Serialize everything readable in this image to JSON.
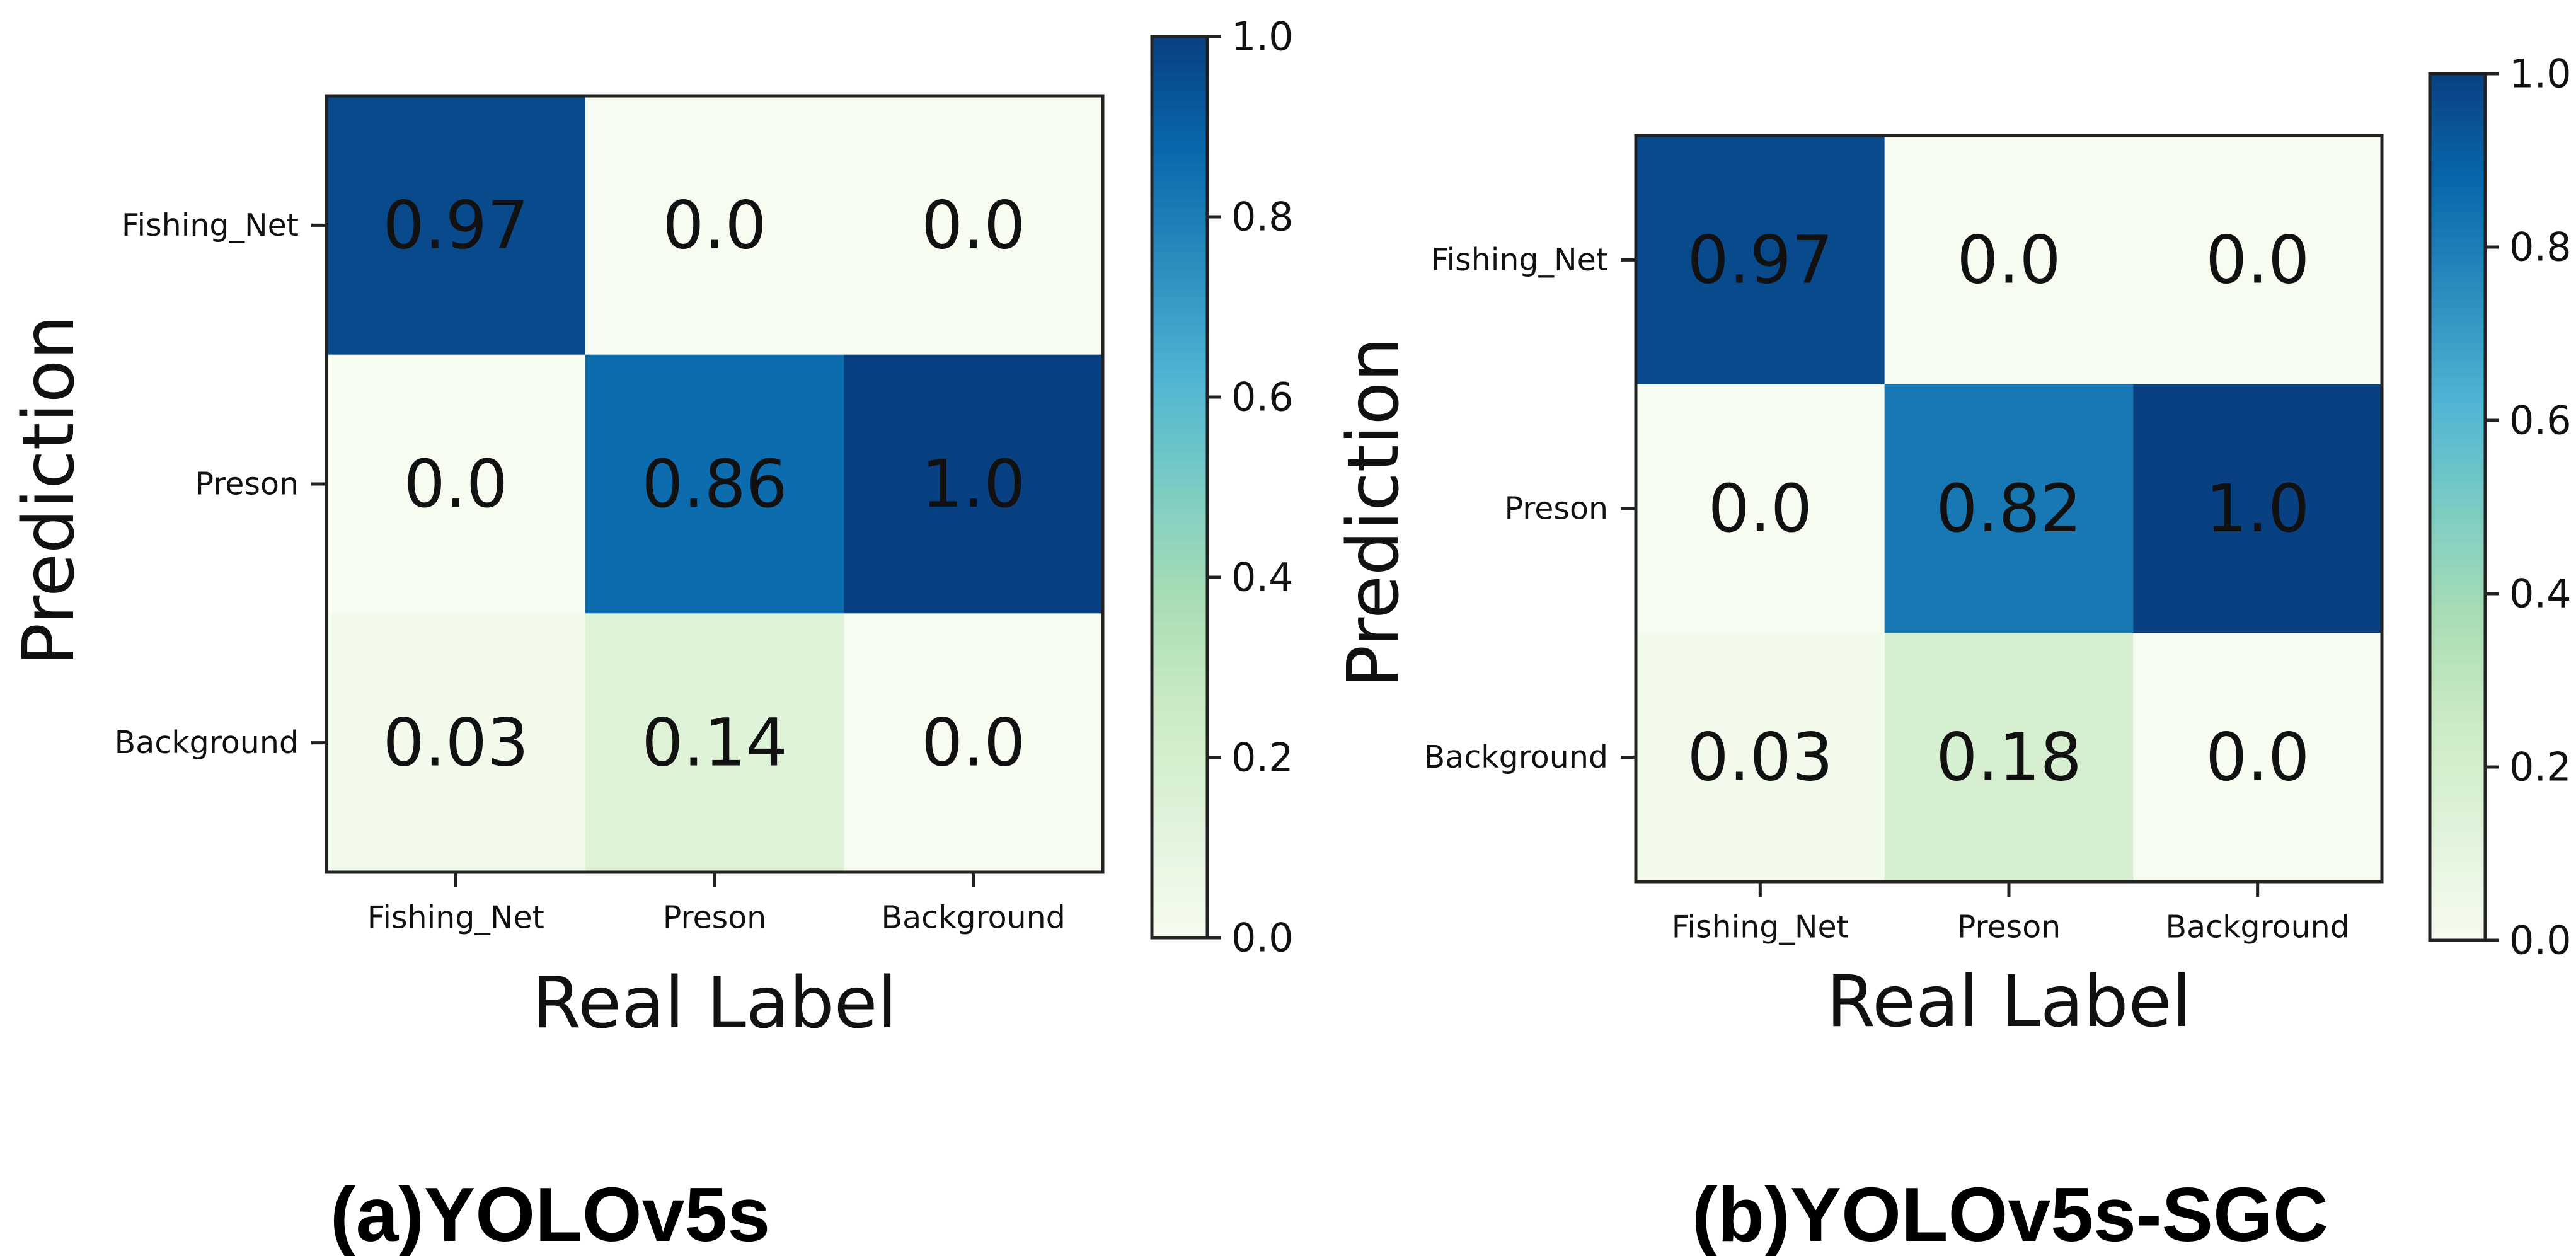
{
  "chart_data": [
    {
      "type": "heatmap",
      "caption": "(a)YOLOv5s",
      "xlabel": "Real Label",
      "ylabel": "Prediction",
      "x_categories": [
        "Fishing_Net",
        "Preson",
        "Background"
      ],
      "y_categories": [
        "Fishing_Net",
        "Preson",
        "Background"
      ],
      "values": [
        [
          0.97,
          0.0,
          0.0
        ],
        [
          0.0,
          0.86,
          1.0
        ],
        [
          0.03,
          0.14,
          0.0
        ]
      ],
      "value_labels": [
        [
          "0.97",
          "0.0",
          "0.0"
        ],
        [
          "0.0",
          "0.86",
          "1.0"
        ],
        [
          "0.03",
          "0.14",
          "0.0"
        ]
      ],
      "colorbar": {
        "range": [
          0,
          1
        ],
        "ticks": [
          "0.0",
          "0.2",
          "0.4",
          "0.6",
          "0.8",
          "1.0"
        ]
      }
    },
    {
      "type": "heatmap",
      "caption": "(b)YOLOv5s-SGC",
      "xlabel": "Real Label",
      "ylabel": "Prediction",
      "x_categories": [
        "Fishing_Net",
        "Preson",
        "Background"
      ],
      "y_categories": [
        "Fishing_Net",
        "Preson",
        "Background"
      ],
      "values": [
        [
          0.97,
          0.0,
          0.0
        ],
        [
          0.0,
          0.82,
          1.0
        ],
        [
          0.03,
          0.18,
          0.0
        ]
      ],
      "value_labels": [
        [
          "0.97",
          "0.0",
          "0.0"
        ],
        [
          "0.0",
          "0.82",
          "1.0"
        ],
        [
          "0.03",
          "0.18",
          "0.0"
        ]
      ],
      "colorbar": {
        "range": [
          0,
          1
        ],
        "ticks": [
          "0.0",
          "0.2",
          "0.4",
          "0.6",
          "0.8",
          "1.0"
        ]
      }
    }
  ],
  "colormap": [
    "#f7fcf0",
    "#e0f3db",
    "#ccebc5",
    "#a8ddb5",
    "#7bccc4",
    "#4eb3d3",
    "#2b8cbe",
    "#0868ac",
    "#084081"
  ]
}
